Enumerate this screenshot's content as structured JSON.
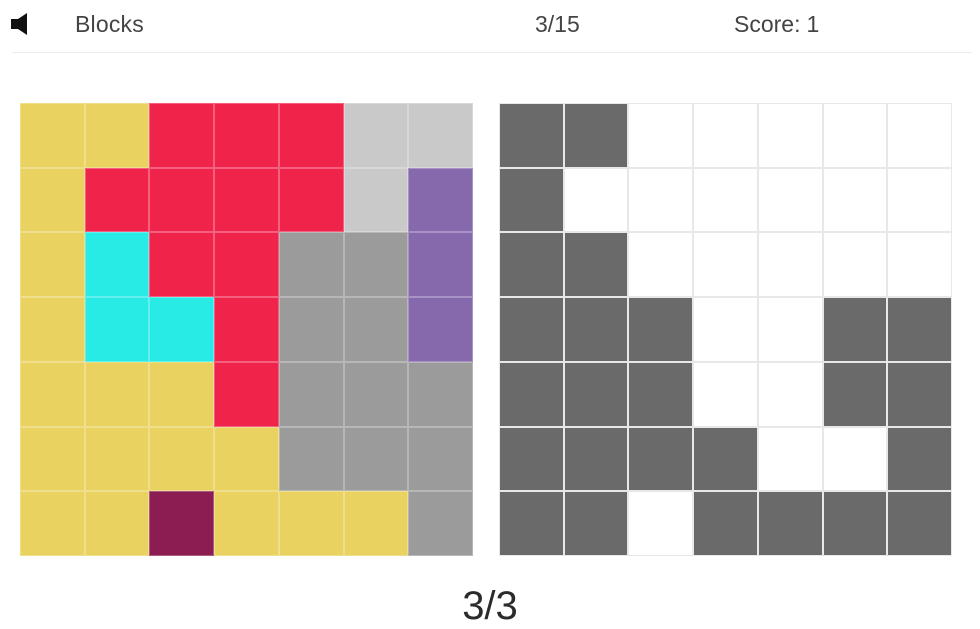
{
  "header": {
    "sound_icon": "speaker-icon",
    "title": "Blocks",
    "level": "3/15",
    "score_label": "Score:",
    "score_value": "1"
  },
  "palette": {
    "Y": "#e9d25f",
    "R": "#f0234b",
    "L": "#c9c9c9",
    "P": "#8669ad",
    "C": "#28ebe6",
    "G": "#9b9b9b",
    "M": "#8c1d53",
    "D": "#6a6a6a",
    "W": "#ffffff"
  },
  "puzzle_board": {
    "rows": [
      [
        "Y",
        "Y",
        "R",
        "R",
        "R",
        "L",
        "L"
      ],
      [
        "Y",
        "R",
        "R",
        "R",
        "R",
        "L",
        "P"
      ],
      [
        "Y",
        "C",
        "R",
        "R",
        "G",
        "G",
        "P"
      ],
      [
        "Y",
        "C",
        "C",
        "R",
        "G",
        "G",
        "P"
      ],
      [
        "Y",
        "Y",
        "Y",
        "R",
        "G",
        "G",
        "G"
      ],
      [
        "Y",
        "Y",
        "Y",
        "Y",
        "G",
        "G",
        "G"
      ],
      [
        "Y",
        "Y",
        "M",
        "Y",
        "Y",
        "Y",
        "G"
      ]
    ]
  },
  "target_board": {
    "rows": [
      [
        "D",
        "D",
        "W",
        "W",
        "W",
        "W",
        "W"
      ],
      [
        "D",
        "W",
        "W",
        "W",
        "W",
        "W",
        "W"
      ],
      [
        "D",
        "D",
        "W",
        "W",
        "W",
        "W",
        "W"
      ],
      [
        "D",
        "D",
        "D",
        "W",
        "W",
        "D",
        "D"
      ],
      [
        "D",
        "D",
        "D",
        "W",
        "W",
        "D",
        "D"
      ],
      [
        "D",
        "D",
        "D",
        "D",
        "W",
        "W",
        "D"
      ],
      [
        "D",
        "D",
        "W",
        "D",
        "D",
        "D",
        "D"
      ]
    ]
  },
  "footer": {
    "progress": "3/3"
  }
}
